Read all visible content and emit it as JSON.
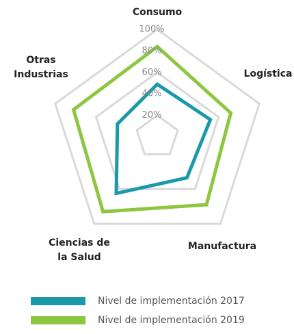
{
  "chart_data": {
    "type": "radar",
    "categories": [
      [
        "Consumo"
      ],
      [
        "Logística"
      ],
      [
        "Manufactura"
      ],
      [
        "Ciencias de",
        "la Salud"
      ],
      [
        "Otras",
        "Industrias"
      ]
    ],
    "ylim": [
      0,
      100
    ],
    "yticks": [
      {
        "value": 20,
        "label": "20%"
      },
      {
        "value": 40,
        "label": "40%"
      },
      {
        "value": 60,
        "label": "60%"
      },
      {
        "value": 80,
        "label": "80%"
      },
      {
        "value": 100,
        "label": "100%"
      }
    ],
    "grid": true,
    "legend": "bottom",
    "series": [
      {
        "name": "Nivel de implementación 2017",
        "color": "#1a9aa8",
        "values": [
          49,
          52,
          47,
          65,
          39
        ]
      },
      {
        "name": "Nivel de implementación 2019",
        "color": "#8dc63f",
        "values": [
          84,
          72,
          78,
          86,
          82
        ]
      }
    ]
  }
}
